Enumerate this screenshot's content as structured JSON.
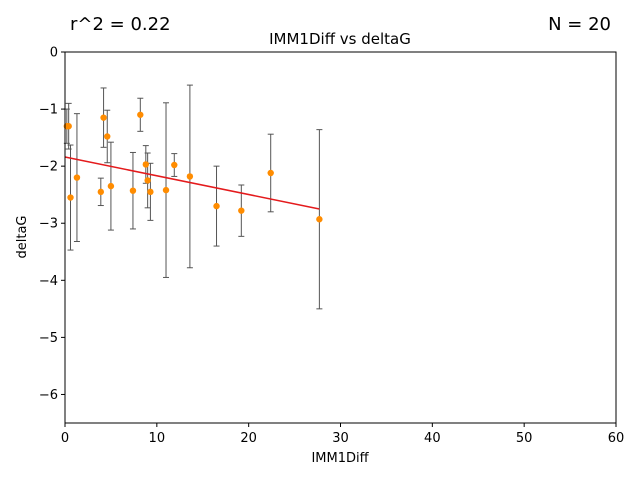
{
  "chart_data": {
    "type": "scatter",
    "title": "IMM1Diff vs deltaG",
    "xlabel": "IMM1Diff",
    "ylabel": "deltaG",
    "xlim": [
      0,
      60
    ],
    "ylim": [
      -6.5,
      0
    ],
    "xticks": [
      0,
      10,
      20,
      30,
      40,
      50,
      60
    ],
    "yticks": [
      0,
      -1,
      -2,
      -3,
      -4,
      -5,
      -6
    ],
    "xtick_labels": [
      "0",
      "10",
      "20",
      "30",
      "40",
      "50",
      "60"
    ],
    "ytick_labels": [
      "0",
      "−1",
      "−2",
      "−3",
      "−4",
      "−5",
      "−6"
    ],
    "grid": false,
    "annotations": {
      "r2": "r^2 = 0.22",
      "n": "N = 20"
    },
    "colors": {
      "points": "#ff8c00",
      "fit_line": "#e41a1c",
      "error_bars": "#555555"
    },
    "points": [
      {
        "x": 0.4,
        "y": -1.3,
        "err": 0.4
      },
      {
        "x": 0.6,
        "y": -2.55,
        "err": 0.92
      },
      {
        "x": 1.3,
        "y": -2.2,
        "err": 1.12
      },
      {
        "x": 3.9,
        "y": -2.45,
        "err": 0.24
      },
      {
        "x": 4.2,
        "y": -1.15,
        "err": 0.52
      },
      {
        "x": 4.6,
        "y": -1.48,
        "err": 0.46
      },
      {
        "x": 5.0,
        "y": -2.35,
        "err": 0.77
      },
      {
        "x": 7.4,
        "y": -2.43,
        "err": 0.67
      },
      {
        "x": 8.2,
        "y": -1.1,
        "err": 0.29
      },
      {
        "x": 8.8,
        "y": -1.97,
        "err": 0.33
      },
      {
        "x": 9.0,
        "y": -2.25,
        "err": 0.48
      },
      {
        "x": 9.3,
        "y": -2.45,
        "err": 0.5
      },
      {
        "x": 11.0,
        "y": -2.42,
        "err": 1.53
      },
      {
        "x": 11.9,
        "y": -1.98,
        "err": 0.2
      },
      {
        "x": 13.6,
        "y": -2.18,
        "err": 1.6
      },
      {
        "x": 16.5,
        "y": -2.7,
        "err": 0.7
      },
      {
        "x": 19.2,
        "y": -2.78,
        "err": 0.45
      },
      {
        "x": 22.4,
        "y": -2.12,
        "err": 0.68
      },
      {
        "x": 27.7,
        "y": -2.93,
        "err": 1.57
      },
      {
        "x": 0.2,
        "y": -1.3,
        "err": 0.3
      }
    ],
    "fit_line": {
      "x": [
        0,
        27.7
      ],
      "y": [
        -1.84,
        -2.75
      ]
    }
  }
}
